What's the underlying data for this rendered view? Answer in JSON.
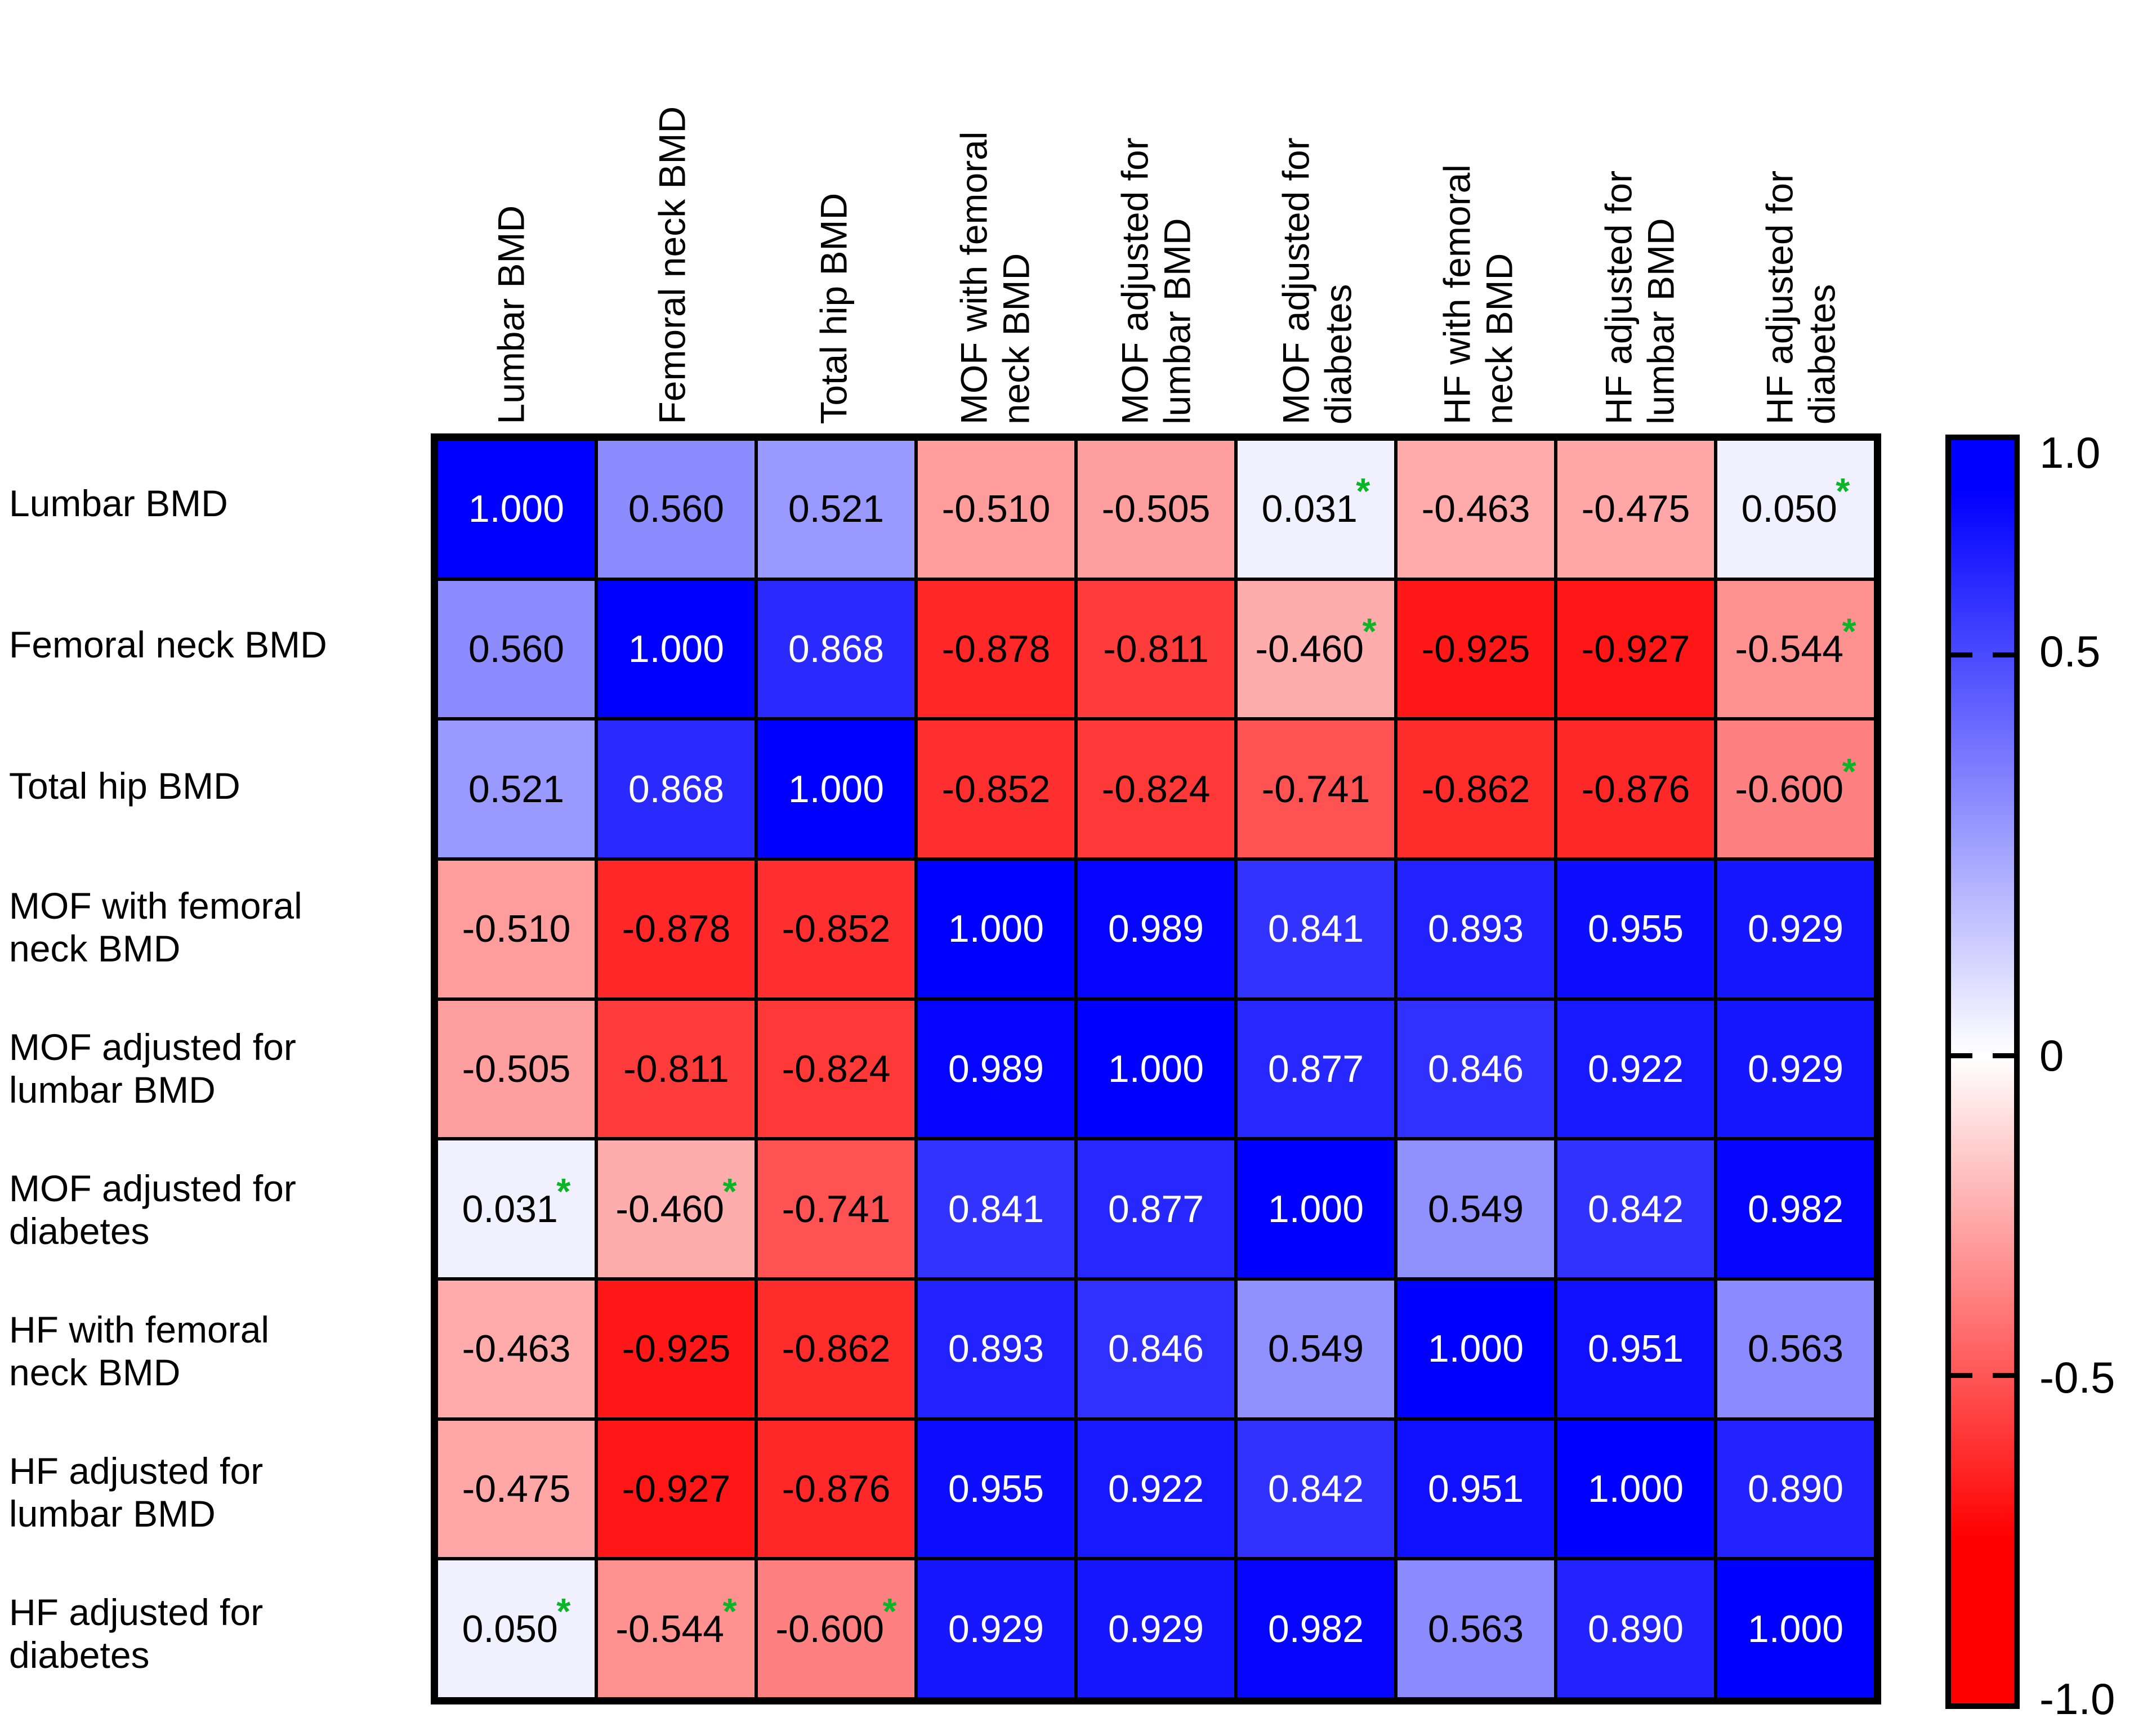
{
  "figure": {
    "kind": "correlation-matrix-heatmap",
    "background": "#ffffff",
    "grid_line_color": "#000000",
    "star_color": "#0cb428",
    "text_color_light": "#ffffff",
    "text_color_dark": "#000000"
  },
  "chart_data": {
    "type": "heatmap",
    "title": "",
    "variables": [
      "Lumbar BMD",
      "Femoral neck BMD",
      "Total hip BMD",
      "MOF with femoral neck BMD",
      "MOF adjusted for lumbar BMD",
      "MOF adjusted for diabetes",
      "HF with femoral neck BMD",
      "HF adjusted for lumbar BMD",
      "HF adjusted for diabetes"
    ],
    "row_labels": [
      "Lumbar BMD",
      "Femoral neck BMD",
      "Total hip BMD",
      "MOF with femoral\nneck BMD",
      "MOF adjusted for\nlumbar BMD",
      "MOF adjusted for\ndiabetes",
      "HF with femoral\nneck BMD",
      "HF adjusted for\nlumbar BMD",
      "HF adjusted for\ndiabetes"
    ],
    "col_labels": [
      "Lumbar BMD",
      "Femoral neck BMD",
      "Total hip BMD",
      "MOF with femoral\nneck BMD",
      "MOF adjusted for\nlumbar BMD",
      "MOF adjusted for\ndiabetes",
      "HF with femoral\nneck BMD",
      "HF adjusted for\nlumbar BMD",
      "HF adjusted for\ndiabetes"
    ],
    "values": [
      [
        1.0,
        0.56,
        0.521,
        -0.51,
        -0.505,
        0.031,
        -0.463,
        -0.475,
        0.05
      ],
      [
        0.56,
        1.0,
        0.868,
        -0.878,
        -0.811,
        -0.46,
        -0.925,
        -0.927,
        -0.544
      ],
      [
        0.521,
        0.868,
        1.0,
        -0.852,
        -0.824,
        -0.741,
        -0.862,
        -0.876,
        -0.6
      ],
      [
        -0.51,
        -0.878,
        -0.852,
        1.0,
        0.989,
        0.841,
        0.893,
        0.955,
        0.929
      ],
      [
        -0.505,
        -0.811,
        -0.824,
        0.989,
        1.0,
        0.877,
        0.846,
        0.922,
        0.929
      ],
      [
        0.031,
        -0.46,
        -0.741,
        0.841,
        0.877,
        1.0,
        0.549,
        0.842,
        0.982
      ],
      [
        -0.463,
        -0.925,
        -0.862,
        0.893,
        0.846,
        0.549,
        1.0,
        0.951,
        0.563
      ],
      [
        -0.475,
        -0.927,
        -0.876,
        0.955,
        0.922,
        0.842,
        0.951,
        1.0,
        0.89
      ],
      [
        0.05,
        -0.544,
        -0.6,
        0.929,
        0.929,
        0.982,
        0.563,
        0.89,
        1.0
      ]
    ],
    "value_decimals": 3,
    "significance_symbol": "*",
    "significant_cells": [
      [
        0,
        5
      ],
      [
        0,
        8
      ],
      [
        1,
        5
      ],
      [
        1,
        8
      ],
      [
        2,
        8
      ],
      [
        5,
        0
      ],
      [
        5,
        1
      ],
      [
        8,
        0
      ],
      [
        8,
        1
      ],
      [
        8,
        2
      ]
    ],
    "colormap": {
      "negative": "#ff0000",
      "mid": "#ffffff",
      "positive": "#0000ff",
      "range": [
        -1,
        1
      ],
      "full_saturation_at_abs": 0.8
    },
    "white_text_threshold": 0.8,
    "legend_position": "right",
    "colorbar": {
      "ticks": [
        {
          "label": "1.0",
          "pct": 1.4,
          "mark": false
        },
        {
          "label": "0.5",
          "pct": 17.0,
          "mark": true
        },
        {
          "label": "0",
          "pct": 48.7,
          "mark": true
        },
        {
          "label": "-0.5",
          "pct": 74.0,
          "mark": true
        },
        {
          "label": "-1.0",
          "pct": 99.2,
          "mark": false
        }
      ]
    }
  }
}
